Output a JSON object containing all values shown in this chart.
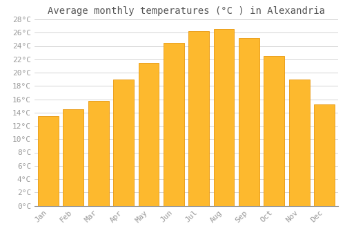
{
  "title": "Average monthly temperatures (°C ) in Alexandria",
  "months": [
    "Jan",
    "Feb",
    "Mar",
    "Apr",
    "May",
    "Jun",
    "Jul",
    "Aug",
    "Sep",
    "Oct",
    "Nov",
    "Dec"
  ],
  "temperatures": [
    13.5,
    14.5,
    15.7,
    19.0,
    21.5,
    24.5,
    26.2,
    26.5,
    25.2,
    22.5,
    19.0,
    15.2
  ],
  "bar_color": "#FDB92E",
  "bar_edge_color": "#E8960A",
  "background_color": "#FFFFFF",
  "grid_color": "#CCCCCC",
  "text_color": "#999999",
  "title_color": "#555555",
  "ylim": [
    0,
    28
  ],
  "ytick_step": 2,
  "title_fontsize": 10,
  "tick_fontsize": 8,
  "font_family": "monospace"
}
